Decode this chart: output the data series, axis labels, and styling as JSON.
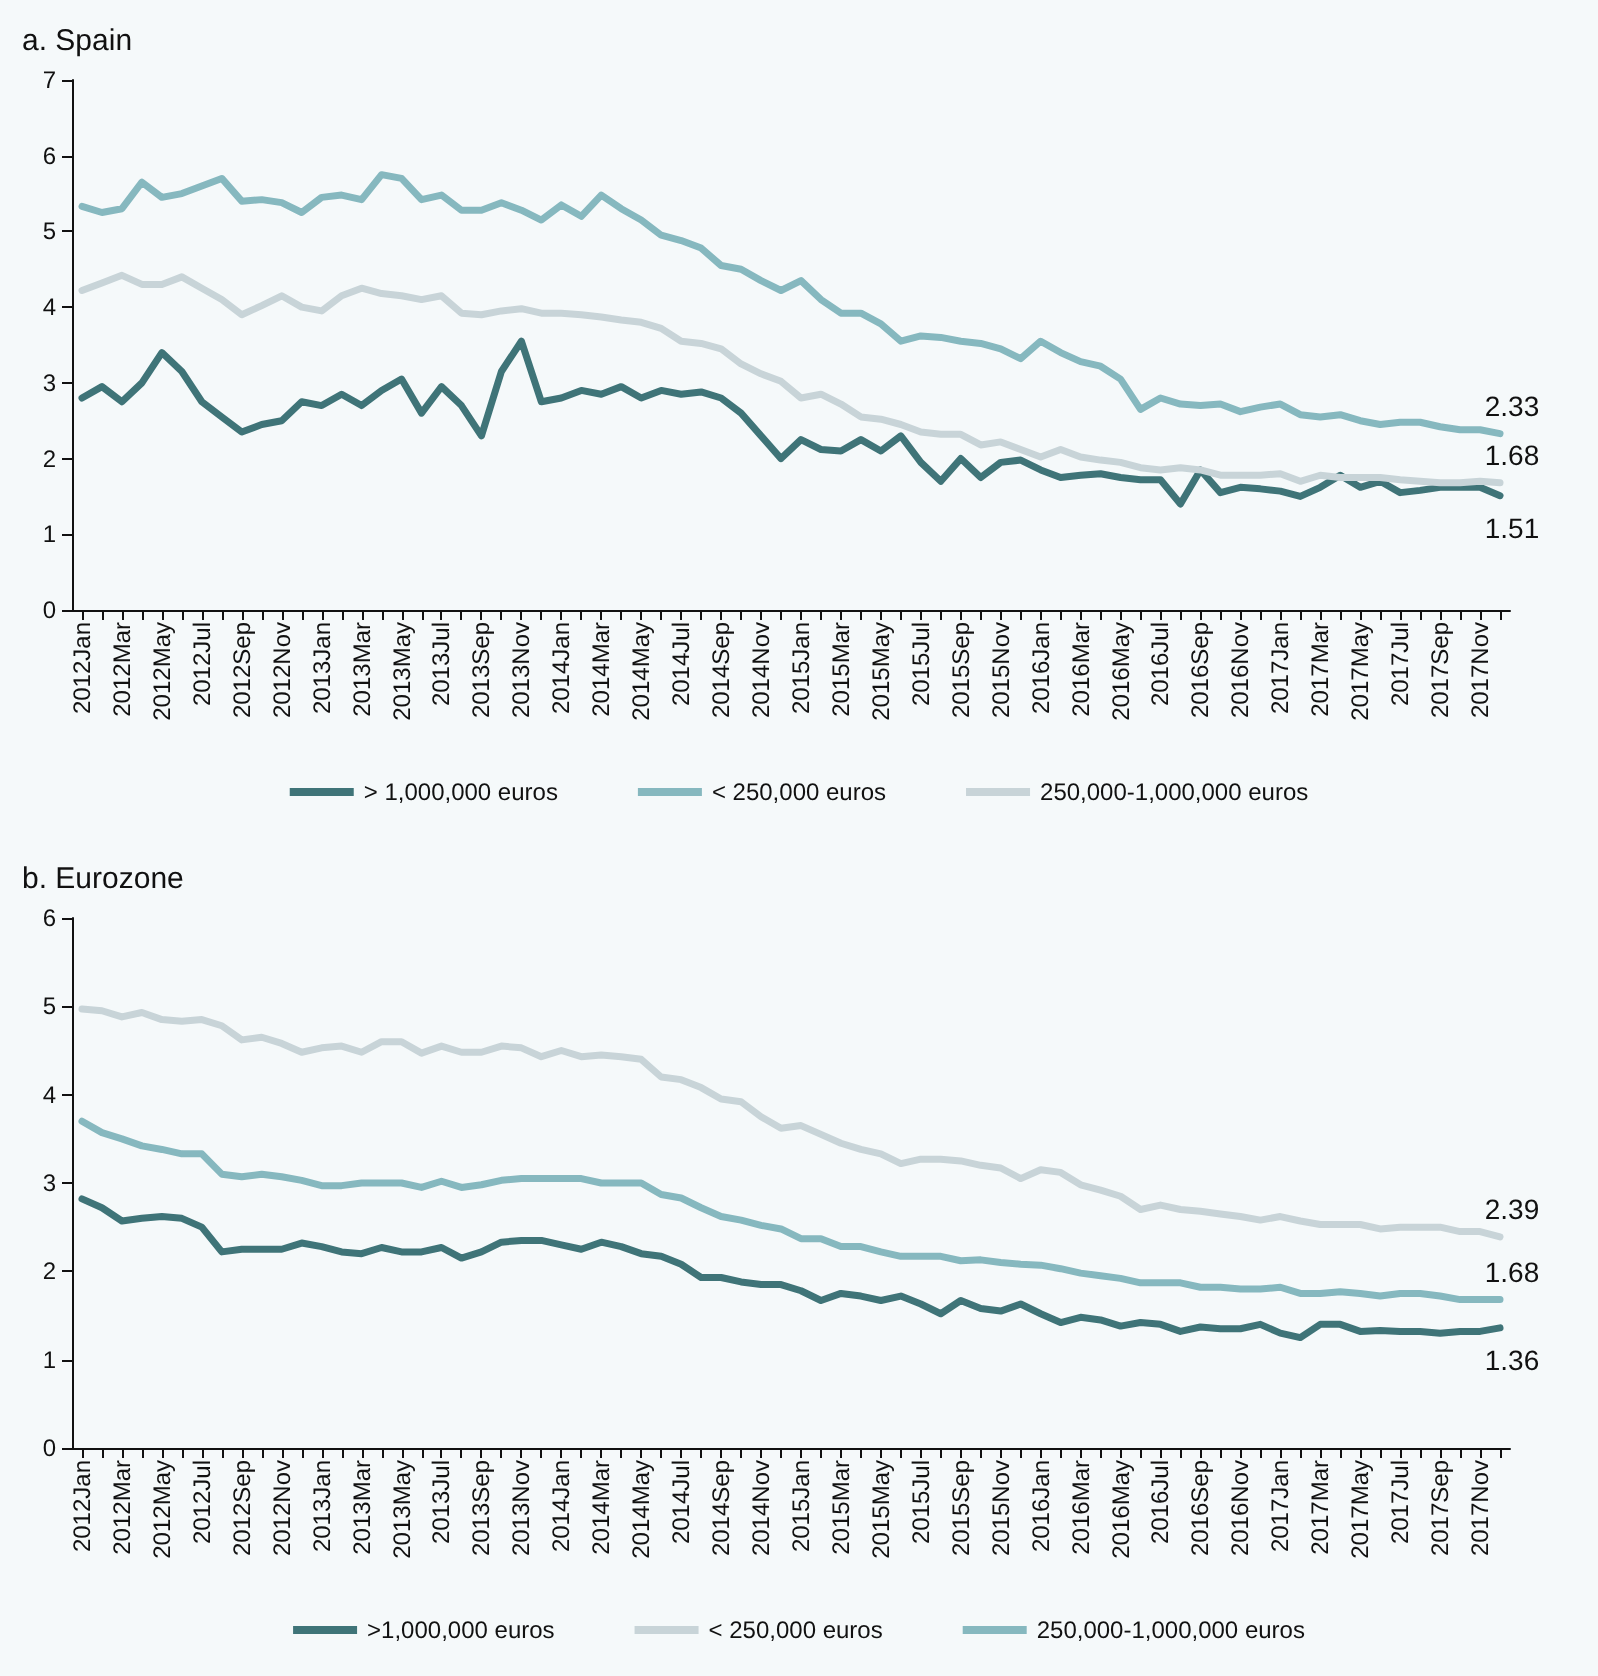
{
  "chart_data": [
    {
      "type": "line",
      "title": "a. Spain",
      "categories": [
        "2012Jan",
        null,
        "2012Mar",
        null,
        "2012May",
        null,
        "2012Jul",
        null,
        "2012Sep",
        null,
        "2012Nov",
        null,
        "2013Jan",
        null,
        "2013Mar",
        null,
        "2013May",
        null,
        "2013Jul",
        null,
        "2013Sep",
        null,
        "2013Nov",
        null,
        "2014Jan",
        null,
        "2014Mar",
        null,
        "2014May",
        null,
        "2014Jul",
        null,
        "2014Sep",
        null,
        "2014Nov",
        null,
        "2015Jan",
        null,
        "2015Mar",
        null,
        "2015May",
        null,
        "2015Jul",
        null,
        "2015Sep",
        null,
        "2015Nov",
        null,
        "2016Jan",
        null,
        "2016Mar",
        null,
        "2016May",
        null,
        "2016Jul",
        null,
        "2016Sep",
        null,
        "2016Nov",
        null,
        "2017Jan",
        null,
        "2017Mar",
        null,
        "2017May",
        null,
        "2017Jul",
        null,
        "2017Sep",
        null,
        "2017Nov",
        null
      ],
      "series": [
        {
          "name": "> 1,000,000 euros",
          "color": "#3f7478",
          "values": [
            2.8,
            2.95,
            2.75,
            3.0,
            3.4,
            3.15,
            2.75,
            2.55,
            2.35,
            2.45,
            2.5,
            2.75,
            2.7,
            2.85,
            2.7,
            2.9,
            3.05,
            2.6,
            2.95,
            2.7,
            2.3,
            3.15,
            3.55,
            2.75,
            2.8,
            2.9,
            2.85,
            2.95,
            2.8,
            2.9,
            2.85,
            2.88,
            2.8,
            2.6,
            2.3,
            2.0,
            2.25,
            2.12,
            2.1,
            2.25,
            2.1,
            2.3,
            1.95,
            1.7,
            2.0,
            1.75,
            1.95,
            1.98,
            1.85,
            1.75,
            1.78,
            1.8,
            1.75,
            1.72,
            1.72,
            1.4,
            1.85,
            1.55,
            1.62,
            1.6,
            1.57,
            1.5,
            1.62,
            1.78,
            1.62,
            1.7,
            1.55,
            1.58,
            1.62,
            1.62,
            1.62,
            1.51
          ],
          "value_labels": [
            null,
            null,
            null,
            null,
            null,
            null,
            null,
            null,
            null,
            null,
            null,
            null,
            null,
            null,
            null,
            null,
            null,
            null,
            null,
            null,
            null,
            null,
            null,
            null,
            null,
            null,
            null,
            null,
            null,
            null,
            null,
            null,
            null,
            null,
            null,
            null,
            null,
            null,
            null,
            null,
            null,
            null,
            null,
            null,
            null,
            null,
            null,
            null,
            null,
            null,
            null,
            null,
            null,
            null,
            null,
            null,
            null,
            null,
            null,
            null,
            null,
            null,
            null,
            null,
            null,
            null,
            null,
            null,
            null,
            null,
            null,
            "1.51"
          ]
        },
        {
          "name": "< 250,000 euros",
          "color": "#86b8bf",
          "values": [
            5.33,
            5.25,
            5.3,
            5.65,
            5.45,
            5.5,
            5.6,
            5.7,
            5.4,
            5.42,
            5.38,
            5.25,
            5.45,
            5.48,
            5.42,
            5.75,
            5.7,
            5.42,
            5.48,
            5.28,
            5.28,
            5.38,
            5.28,
            5.15,
            5.35,
            5.2,
            5.48,
            5.3,
            5.15,
            4.95,
            4.88,
            4.78,
            4.55,
            4.5,
            4.35,
            4.22,
            4.35,
            4.1,
            3.92,
            3.92,
            3.78,
            3.55,
            3.62,
            3.6,
            3.55,
            3.52,
            3.45,
            3.32,
            3.55,
            3.4,
            3.28,
            3.22,
            3.05,
            2.65,
            2.8,
            2.72,
            2.7,
            2.72,
            2.62,
            2.68,
            2.72,
            2.58,
            2.55,
            2.58,
            2.5,
            2.45,
            2.48,
            2.48,
            2.42,
            2.38,
            2.38,
            2.33
          ],
          "value_labels": [
            null,
            null,
            null,
            null,
            null,
            null,
            null,
            null,
            null,
            null,
            null,
            null,
            null,
            null,
            null,
            null,
            null,
            null,
            null,
            null,
            null,
            null,
            null,
            null,
            null,
            null,
            null,
            null,
            null,
            null,
            null,
            null,
            null,
            null,
            null,
            null,
            null,
            null,
            null,
            null,
            null,
            null,
            null,
            null,
            null,
            null,
            null,
            null,
            null,
            null,
            null,
            null,
            null,
            null,
            null,
            null,
            null,
            null,
            null,
            null,
            null,
            null,
            null,
            null,
            null,
            null,
            null,
            null,
            null,
            null,
            null,
            "2.33"
          ]
        },
        {
          "name": "250,000-1,000,000 euros",
          "color": "#c8d4d8",
          "values": [
            4.22,
            4.32,
            4.42,
            4.3,
            4.3,
            4.4,
            4.25,
            4.1,
            3.9,
            4.02,
            4.15,
            4.0,
            3.95,
            4.15,
            4.25,
            4.18,
            4.15,
            4.1,
            4.15,
            3.92,
            3.9,
            3.95,
            3.98,
            3.92,
            3.92,
            3.9,
            3.87,
            3.83,
            3.8,
            3.72,
            3.55,
            3.52,
            3.45,
            3.25,
            3.12,
            3.02,
            2.8,
            2.85,
            2.72,
            2.55,
            2.52,
            2.45,
            2.35,
            2.32,
            2.32,
            2.18,
            2.22,
            2.12,
            2.02,
            2.12,
            2.02,
            1.98,
            1.95,
            1.88,
            1.85,
            1.88,
            1.85,
            1.78,
            1.78,
            1.78,
            1.8,
            1.7,
            1.78,
            1.75,
            1.75,
            1.75,
            1.72,
            1.7,
            1.68,
            1.68,
            1.7,
            1.68
          ],
          "value_labels": [
            null,
            null,
            null,
            null,
            null,
            null,
            null,
            null,
            null,
            null,
            null,
            null,
            null,
            null,
            null,
            null,
            null,
            null,
            null,
            null,
            null,
            null,
            null,
            null,
            null,
            null,
            null,
            null,
            null,
            null,
            null,
            null,
            null,
            null,
            null,
            null,
            null,
            null,
            null,
            null,
            null,
            null,
            null,
            null,
            null,
            null,
            null,
            null,
            null,
            null,
            null,
            null,
            null,
            null,
            null,
            null,
            null,
            null,
            null,
            null,
            null,
            null,
            null,
            null,
            null,
            null,
            null,
            null,
            null,
            null,
            null,
            "1.68"
          ]
        }
      ],
      "ylim": [
        0,
        7
      ],
      "yticks": [
        0,
        1,
        2,
        3,
        4,
        5,
        6,
        7
      ],
      "grid": false,
      "legend": "bottom",
      "marker": "none",
      "line_style": "solid"
    },
    {
      "type": "line",
      "title": "b. Eurozone",
      "categories": [
        "2012Jan",
        null,
        "2012Mar",
        null,
        "2012May",
        null,
        "2012Jul",
        null,
        "2012Sep",
        null,
        "2012Nov",
        null,
        "2013Jan",
        null,
        "2013Mar",
        null,
        "2013May",
        null,
        "2013Jul",
        null,
        "2013Sep",
        null,
        "2013Nov",
        null,
        "2014Jan",
        null,
        "2014Mar",
        null,
        "2014May",
        null,
        "2014Jul",
        null,
        "2014Sep",
        null,
        "2014Nov",
        null,
        "2015Jan",
        null,
        "2015Mar",
        null,
        "2015May",
        null,
        "2015Jul",
        null,
        "2015Sep",
        null,
        "2015Nov",
        null,
        "2016Jan",
        null,
        "2016Mar",
        null,
        "2016May",
        null,
        "2016Jul",
        null,
        "2016Sep",
        null,
        "2016Nov",
        null,
        "2017Jan",
        null,
        "2017Mar",
        null,
        "2017May",
        null,
        "2017Jul",
        null,
        "2017Sep",
        null,
        "2017Nov",
        null
      ],
      "series": [
        {
          "name": ">1,000,000 euros",
          "color": "#3f7478",
          "values": [
            2.82,
            2.72,
            2.57,
            2.6,
            2.62,
            2.6,
            2.5,
            2.22,
            2.25,
            2.25,
            2.25,
            2.32,
            2.28,
            2.22,
            2.2,
            2.27,
            2.22,
            2.22,
            2.27,
            2.15,
            2.22,
            2.33,
            2.35,
            2.35,
            2.3,
            2.25,
            2.33,
            2.28,
            2.2,
            2.17,
            2.08,
            1.93,
            1.93,
            1.88,
            1.85,
            1.85,
            1.78,
            1.67,
            1.75,
            1.72,
            1.67,
            1.72,
            1.63,
            1.52,
            1.67,
            1.58,
            1.55,
            1.63,
            1.52,
            1.42,
            1.48,
            1.45,
            1.38,
            1.42,
            1.4,
            1.32,
            1.37,
            1.35,
            1.35,
            1.4,
            1.3,
            1.25,
            1.4,
            1.4,
            1.32,
            1.33,
            1.32,
            1.32,
            1.3,
            1.32,
            1.32,
            1.36
          ],
          "value_labels": [
            null,
            null,
            null,
            null,
            null,
            null,
            null,
            null,
            null,
            null,
            null,
            null,
            null,
            null,
            null,
            null,
            null,
            null,
            null,
            null,
            null,
            null,
            null,
            null,
            null,
            null,
            null,
            null,
            null,
            null,
            null,
            null,
            null,
            null,
            null,
            null,
            null,
            null,
            null,
            null,
            null,
            null,
            null,
            null,
            null,
            null,
            null,
            null,
            null,
            null,
            null,
            null,
            null,
            null,
            null,
            null,
            null,
            null,
            null,
            null,
            null,
            null,
            null,
            null,
            null,
            null,
            null,
            null,
            null,
            null,
            null,
            "1.36"
          ]
        },
        {
          "name": "< 250,000 euros",
          "color": "#c8d4d8",
          "values": [
            4.97,
            4.95,
            4.88,
            4.93,
            4.85,
            4.83,
            4.85,
            4.78,
            4.62,
            4.65,
            4.58,
            4.48,
            4.53,
            4.55,
            4.48,
            4.6,
            4.6,
            4.47,
            4.55,
            4.48,
            4.48,
            4.55,
            4.53,
            4.43,
            4.5,
            4.43,
            4.45,
            4.43,
            4.4,
            4.2,
            4.17,
            4.08,
            3.95,
            3.92,
            3.75,
            3.62,
            3.65,
            3.55,
            3.45,
            3.38,
            3.33,
            3.22,
            3.27,
            3.27,
            3.25,
            3.2,
            3.17,
            3.05,
            3.15,
            3.12,
            2.98,
            2.92,
            2.85,
            2.7,
            2.75,
            2.7,
            2.68,
            2.65,
            2.62,
            2.58,
            2.62,
            2.57,
            2.53,
            2.53,
            2.53,
            2.48,
            2.5,
            2.5,
            2.5,
            2.45,
            2.45,
            2.39
          ],
          "value_labels": [
            null,
            null,
            null,
            null,
            null,
            null,
            null,
            null,
            null,
            null,
            null,
            null,
            null,
            null,
            null,
            null,
            null,
            null,
            null,
            null,
            null,
            null,
            null,
            null,
            null,
            null,
            null,
            null,
            null,
            null,
            null,
            null,
            null,
            null,
            null,
            null,
            null,
            null,
            null,
            null,
            null,
            null,
            null,
            null,
            null,
            null,
            null,
            null,
            null,
            null,
            null,
            null,
            null,
            null,
            null,
            null,
            null,
            null,
            null,
            null,
            null,
            null,
            null,
            null,
            null,
            null,
            null,
            null,
            null,
            null,
            null,
            "2.39"
          ]
        },
        {
          "name": "250,000-1,000,000 euros",
          "color": "#86b8bf",
          "values": [
            3.7,
            3.57,
            3.5,
            3.42,
            3.38,
            3.33,
            3.33,
            3.1,
            3.07,
            3.1,
            3.07,
            3.03,
            2.97,
            2.97,
            3.0,
            3.0,
            3.0,
            2.95,
            3.02,
            2.95,
            2.98,
            3.03,
            3.05,
            3.05,
            3.05,
            3.05,
            3.0,
            3.0,
            3.0,
            2.87,
            2.83,
            2.72,
            2.62,
            2.58,
            2.52,
            2.48,
            2.37,
            2.37,
            2.28,
            2.28,
            2.22,
            2.17,
            2.17,
            2.17,
            2.12,
            2.13,
            2.1,
            2.08,
            2.07,
            2.03,
            1.98,
            1.95,
            1.92,
            1.87,
            1.87,
            1.87,
            1.82,
            1.82,
            1.8,
            1.8,
            1.82,
            1.75,
            1.75,
            1.77,
            1.75,
            1.72,
            1.75,
            1.75,
            1.72,
            1.68,
            1.68,
            1.68
          ],
          "value_labels": [
            null,
            null,
            null,
            null,
            null,
            null,
            null,
            null,
            null,
            null,
            null,
            null,
            null,
            null,
            null,
            null,
            null,
            null,
            null,
            null,
            null,
            null,
            null,
            null,
            null,
            null,
            null,
            null,
            null,
            null,
            null,
            null,
            null,
            null,
            null,
            null,
            null,
            null,
            null,
            null,
            null,
            null,
            null,
            null,
            null,
            null,
            null,
            null,
            null,
            null,
            null,
            null,
            null,
            null,
            null,
            null,
            null,
            null,
            null,
            null,
            null,
            null,
            null,
            null,
            null,
            null,
            null,
            null,
            null,
            null,
            null,
            "1.68"
          ]
        }
      ],
      "ylim": [
        0,
        6
      ],
      "yticks": [
        0,
        1,
        2,
        3,
        4,
        5,
        6
      ],
      "grid": false,
      "legend": "bottom",
      "marker": "none",
      "line_style": "solid"
    }
  ]
}
